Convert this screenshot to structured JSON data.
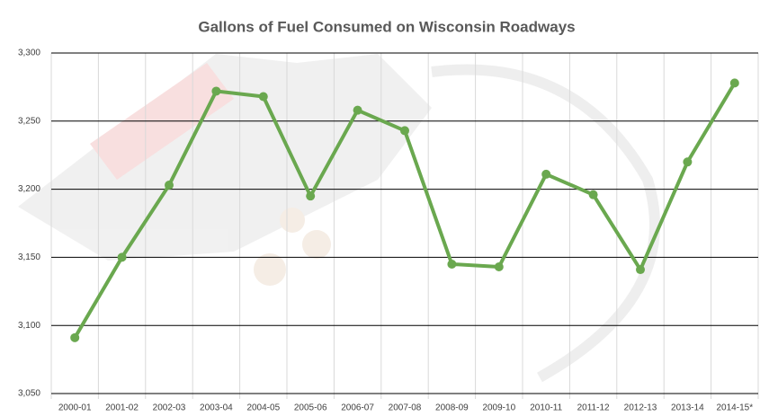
{
  "chart_data": {
    "type": "line",
    "title": "Gallons of Fuel Consumed on Wisconsin Roadways",
    "categories": [
      "2000-01",
      "2001-02",
      "2002-03",
      "2003-04",
      "2004-05",
      "2005-06",
      "2006-07",
      "2007-08",
      "2008-09",
      "2009-10",
      "2010-11",
      "2011-12",
      "2012-13",
      "2013-14",
      "2014-15*"
    ],
    "series": [
      {
        "name": "Gallons",
        "color": "#6aa84f",
        "values": [
          3091,
          3150,
          3203,
          3272,
          3268,
          3195,
          3258,
          3243,
          3145,
          3143,
          3211,
          3196,
          3141,
          3220,
          3278
        ]
      }
    ],
    "ylim": [
      3050,
      3300
    ],
    "yticks": [
      {
        "value": 3050,
        "label": "3,050"
      },
      {
        "value": 3100,
        "label": "3,100"
      },
      {
        "value": 3150,
        "label": "3,150"
      },
      {
        "value": 3200,
        "label": "3,200"
      },
      {
        "value": 3250,
        "label": "3,250"
      },
      {
        "value": 3300,
        "label": "3,300"
      }
    ],
    "grid": true
  }
}
